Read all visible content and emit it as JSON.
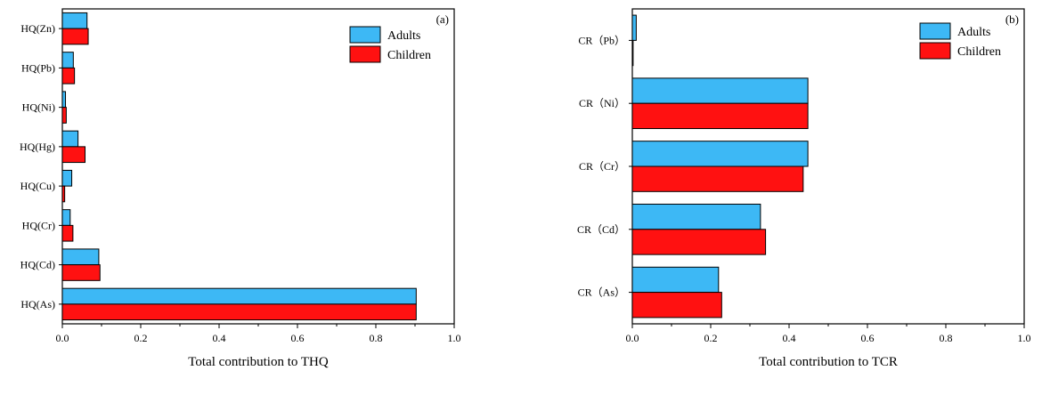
{
  "colors": {
    "adults": "#3db8f5",
    "children": "#ff1111"
  },
  "chart_data": [
    {
      "type": "bar",
      "orientation": "horizontal",
      "panel_label": "(a)",
      "title": "",
      "xlabel": "Total contribution to THQ",
      "ylabel": "",
      "xlim": [
        0,
        1.0
      ],
      "xticks": [
        "0.0",
        "0.2",
        "0.4",
        "0.6",
        "0.8",
        "1.0"
      ],
      "categories": [
        "HQ(Zn)",
        "HQ(Pb)",
        "HQ(Ni)",
        "HQ(Hg)",
        "HQ(Cu)",
        "HQ(Cr)",
        "HQ(Cd)",
        "HQ(As)"
      ],
      "series": [
        {
          "name": "Adults",
          "values": [
            0.063,
            0.028,
            0.008,
            0.04,
            0.024,
            0.02,
            0.093,
            0.903
          ]
        },
        {
          "name": "Children",
          "values": [
            0.066,
            0.031,
            0.01,
            0.058,
            0.006,
            0.027,
            0.096,
            0.903
          ]
        }
      ],
      "legend": {
        "position": "top-right",
        "entries": [
          "Adults",
          "Children"
        ]
      },
      "grid": false
    },
    {
      "type": "bar",
      "orientation": "horizontal",
      "panel_label": "(b)",
      "title": "",
      "xlabel": "Total contribution to TCR",
      "ylabel": "",
      "xlim": [
        0,
        1.0
      ],
      "xticks": [
        "0.0",
        "0.2",
        "0.4",
        "0.6",
        "0.8",
        "1.0"
      ],
      "categories": [
        "CR（Pb）",
        "CR（Ni）",
        "CR（Cr）",
        "CR（Cd）",
        "CR（As）"
      ],
      "series": [
        {
          "name": "Adults",
          "values": [
            0.01,
            0.448,
            0.448,
            0.327,
            0.22
          ]
        },
        {
          "name": "Children",
          "values": [
            0.002,
            0.448,
            0.436,
            0.34,
            0.228
          ]
        }
      ],
      "legend": {
        "position": "top-right",
        "entries": [
          "Adults",
          "Children"
        ]
      },
      "grid": false
    }
  ]
}
